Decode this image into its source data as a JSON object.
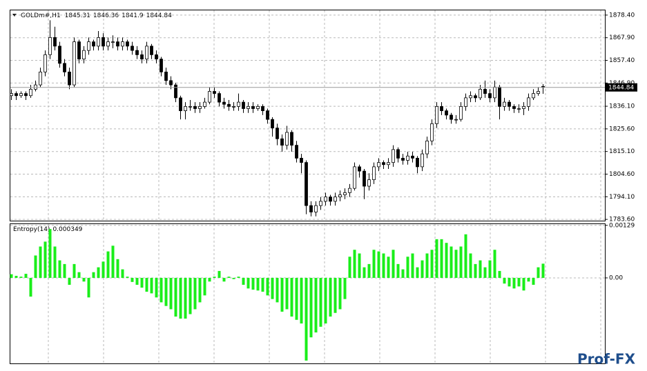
{
  "chart_data": [
    {
      "type": "candlestick",
      "title": "GOLDm#,H1",
      "open": [
        1841,
        1842,
        1841,
        1842,
        1841,
        1844,
        1846,
        1852,
        1860,
        1868,
        1864,
        1856,
        1852,
        1846,
        1866,
        1858,
        1862,
        1866,
        1864,
        1868,
        1864,
        1866,
        1866,
        1864,
        1866,
        1864,
        1862,
        1860,
        1858,
        1864,
        1860,
        1858,
        1852,
        1848,
        1846,
        1840,
        1834,
        1836,
        1836,
        1835,
        1836,
        1838,
        1843,
        1842,
        1838,
        1837,
        1836,
        1836,
        1838,
        1835,
        1836,
        1835,
        1836,
        1834,
        1830,
        1826,
        1821,
        1818,
        1824,
        1818,
        1812,
        1810,
        1790,
        1787,
        1790,
        1792,
        1794,
        1792,
        1794,
        1795,
        1796,
        1798,
        1808,
        1806,
        1799,
        1802,
        1808,
        1810,
        1809,
        1810,
        1816,
        1812,
        1811,
        1813,
        1812,
        1808,
        1814,
        1820,
        1828,
        1836,
        1834,
        1832,
        1830,
        1830,
        1836,
        1840,
        1841,
        1840,
        1844,
        1842,
        1840,
        1845,
        1836,
        1838,
        1836,
        1835,
        1835,
        1836,
        1840,
        1842,
        1845.31
      ],
      "high": [
        1844,
        1843,
        1843,
        1843,
        1846,
        1848,
        1854,
        1862,
        1876,
        1873,
        1866,
        1858,
        1854,
        1868,
        1867,
        1864,
        1868,
        1867,
        1871,
        1870,
        1868,
        1869,
        1868,
        1868,
        1867,
        1866,
        1864,
        1862,
        1866,
        1865,
        1862,
        1859,
        1854,
        1850,
        1847,
        1841,
        1838,
        1839,
        1838,
        1838,
        1840,
        1845,
        1845,
        1843,
        1840,
        1839,
        1838,
        1842,
        1839,
        1838,
        1838,
        1837,
        1837,
        1835,
        1831,
        1828,
        1823,
        1827,
        1825,
        1820,
        1814,
        1811,
        1792,
        1792,
        1794,
        1796,
        1795,
        1796,
        1797,
        1798,
        1800,
        1810,
        1809,
        1807,
        1805,
        1810,
        1812,
        1811,
        1812,
        1818,
        1817,
        1814,
        1815,
        1815,
        1813,
        1816,
        1822,
        1830,
        1838,
        1838,
        1835,
        1833,
        1832,
        1838,
        1842,
        1843,
        1842,
        1846,
        1848,
        1844,
        1848,
        1846,
        1840,
        1839,
        1837,
        1837,
        1838,
        1842,
        1844,
        1845,
        1846.36
      ],
      "low": [
        1839,
        1839,
        1840,
        1839,
        1840,
        1843,
        1845,
        1850,
        1858,
        1862,
        1854,
        1850,
        1844,
        1845,
        1856,
        1856,
        1860,
        1862,
        1862,
        1862,
        1862,
        1863,
        1862,
        1862,
        1862,
        1860,
        1858,
        1856,
        1856,
        1858,
        1856,
        1850,
        1846,
        1844,
        1838,
        1830,
        1830,
        1834,
        1833,
        1833,
        1835,
        1837,
        1840,
        1836,
        1835,
        1834,
        1834,
        1834,
        1833,
        1833,
        1833,
        1834,
        1832,
        1828,
        1822,
        1818,
        1815,
        1816,
        1815,
        1810,
        1805,
        1786,
        1785,
        1785,
        1788,
        1790,
        1790,
        1790,
        1792,
        1793,
        1794,
        1797,
        1803,
        1793,
        1797,
        1800,
        1806,
        1807,
        1807,
        1808,
        1810,
        1809,
        1809,
        1810,
        1805,
        1806,
        1812,
        1818,
        1826,
        1832,
        1830,
        1828,
        1828,
        1829,
        1834,
        1838,
        1838,
        1839,
        1840,
        1838,
        1838,
        1830,
        1834,
        1834,
        1833,
        1833,
        1832,
        1834,
        1839,
        1841,
        1841.9
      ],
      "close": [
        1842,
        1841,
        1842,
        1841,
        1844,
        1846,
        1852,
        1860,
        1868,
        1864,
        1856,
        1852,
        1846,
        1866,
        1858,
        1862,
        1866,
        1864,
        1868,
        1864,
        1866,
        1866,
        1864,
        1866,
        1864,
        1862,
        1860,
        1858,
        1864,
        1860,
        1858,
        1852,
        1848,
        1846,
        1840,
        1834,
        1836,
        1836,
        1835,
        1836,
        1838,
        1843,
        1842,
        1838,
        1837,
        1836,
        1836,
        1838,
        1835,
        1836,
        1835,
        1836,
        1834,
        1830,
        1826,
        1821,
        1818,
        1824,
        1818,
        1812,
        1810,
        1790,
        1787,
        1790,
        1792,
        1794,
        1792,
        1794,
        1795,
        1796,
        1798,
        1808,
        1806,
        1799,
        1802,
        1808,
        1810,
        1809,
        1810,
        1816,
        1812,
        1811,
        1813,
        1812,
        1808,
        1814,
        1820,
        1828,
        1836,
        1834,
        1832,
        1830,
        1830,
        1836,
        1840,
        1841,
        1840,
        1844,
        1842,
        1840,
        1845,
        1836,
        1838,
        1836,
        1835,
        1835,
        1836,
        1840,
        1842,
        1843,
        1844.84
      ],
      "ylim": [
        1783.0,
        1880.6
      ],
      "yticks": [
        {
          "value": 1878.4,
          "label": "1878.40"
        },
        {
          "value": 1867.9,
          "label": "1867.90"
        },
        {
          "value": 1857.4,
          "label": "1857.40"
        },
        {
          "value": 1846.9,
          "label": "1846.90"
        },
        {
          "value": 1836.1,
          "label": "1836.10"
        },
        {
          "value": 1825.6,
          "label": "1825.60"
        },
        {
          "value": 1815.1,
          "label": "1815.10"
        },
        {
          "value": 1804.6,
          "label": "1804.60"
        },
        {
          "value": 1794.1,
          "label": "1794.10"
        },
        {
          "value": 1783.6,
          "label": "1783.60"
        }
      ],
      "grid": true,
      "up_color": "#ffffff",
      "down_color": "#000000"
    },
    {
      "type": "bar",
      "title": "Entropy(14)",
      "color": "#1aee1a",
      "values": [
        9e-05,
        5e-05,
        3e-05,
        0.0001,
        -0.00046,
        0.00055,
        0.00077,
        0.00089,
        0.0012,
        0.00077,
        0.00043,
        0.00034,
        -0.00017,
        0.00034,
        0.00014,
        -9e-05,
        -0.00048,
        0.00014,
        0.00026,
        0.0004,
        0.00065,
        0.00079,
        0.00046,
        0.00021,
        3e-05,
        -0.0001,
        -0.00017,
        -0.00024,
        -0.00034,
        -0.00038,
        -0.00048,
        -0.0006,
        -0.00069,
        -0.00077,
        -0.00095,
        -0.001,
        -0.001,
        -0.00089,
        -0.00077,
        -0.0006,
        -0.00043,
        -9e-05,
        3e-05,
        0.00017,
        -9e-05,
        3e-05,
        -3e-05,
        3e-05,
        -0.00017,
        -0.00026,
        -0.00029,
        -0.00031,
        -0.00034,
        -0.00043,
        -0.00052,
        -0.0006,
        -0.00083,
        -0.00077,
        -0.00095,
        -0.00103,
        -0.00112,
        -0.00203,
        -0.00146,
        -0.00134,
        -0.0012,
        -0.00112,
        -0.00095,
        -0.00086,
        -0.00077,
        -0.00052,
        0.00052,
        0.00069,
        0.0006,
        0.00026,
        0.00034,
        0.00069,
        0.00065,
        0.0006,
        0.00052,
        0.00069,
        0.00034,
        0.00021,
        0.00052,
        0.0006,
        0.00026,
        0.00043,
        0.0006,
        0.00069,
        0.00095,
        0.00095,
        0.00086,
        0.00077,
        0.00069,
        0.00077,
        0.00107,
        0.0006,
        0.00034,
        0.00043,
        0.00026,
        0.00043,
        0.00069,
        0.00017,
        -0.00014,
        -0.00021,
        -0.00026,
        -0.00021,
        -0.00031,
        -9e-05,
        -0.00017,
        0.00026,
        0.000349
      ],
      "ylim": [
        -0.0021,
        0.00132
      ],
      "yticks": [
        0.00129,
        {
          "value": 0,
          "label": "0.00"
        }
      ],
      "grid": true
    }
  ],
  "watermark": "Prof-FX"
}
